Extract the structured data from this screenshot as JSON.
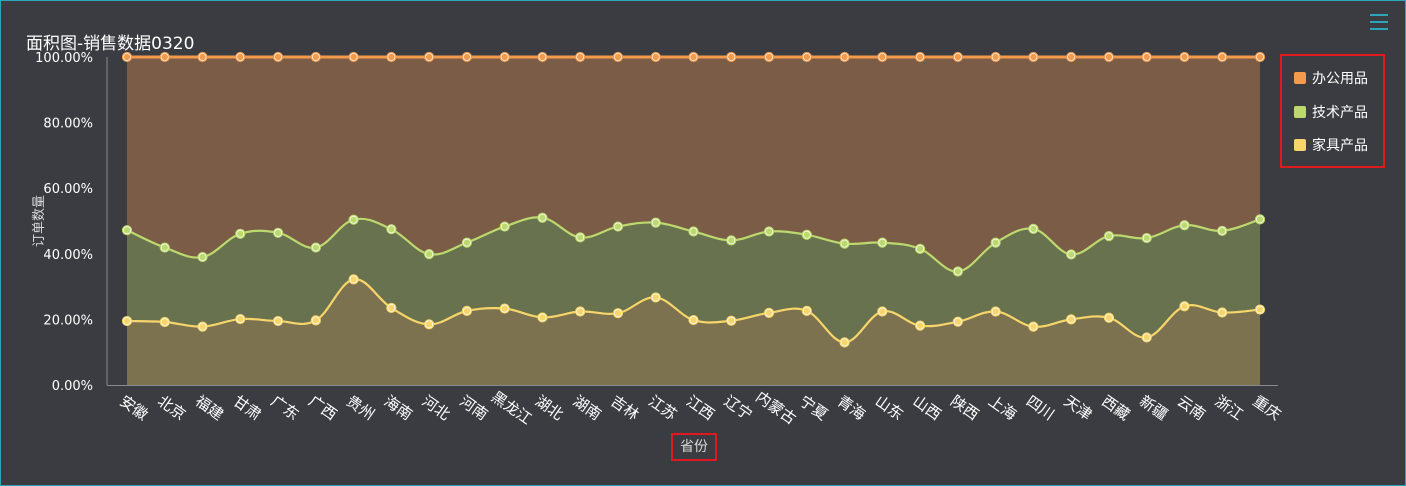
{
  "title": "面积图-销售数据0320",
  "colors": {
    "background": "#3b3c42",
    "office": "#f39a4b",
    "tech": "#bcd96e",
    "furniture": "#f7d56b",
    "office_fill": "#7b5c47",
    "tech_fill": "#69724f",
    "furniture_fill": "#7c7250",
    "highlight_border": "#e0191f",
    "accent": "#2aa6b8"
  },
  "toolbar": {
    "menu_icon": "hamburger-menu-icon"
  },
  "legend": {
    "items": [
      {
        "label": "办公用品",
        "color": "#f39a4b"
      },
      {
        "label": "技术产品",
        "color": "#bcd96e"
      },
      {
        "label": "家具产品",
        "color": "#f7d56b"
      }
    ]
  },
  "chart_data": {
    "type": "area",
    "stacked": true,
    "percent": true,
    "xlabel": "省份",
    "ylabel": "订单数量",
    "ylim": [
      0,
      100
    ],
    "yticks": [
      "0.00%",
      "20.00%",
      "40.00%",
      "60.00%",
      "80.00%",
      "100.00%"
    ],
    "grid": false,
    "legend_position": "right",
    "categories": [
      "安徽",
      "北京",
      "福建",
      "甘肃",
      "广东",
      "广西",
      "贵州",
      "海南",
      "河北",
      "河南",
      "黑龙江",
      "湖北",
      "湖南",
      "吉林",
      "江苏",
      "江西",
      "辽宁",
      "内蒙古",
      "宁夏",
      "青海",
      "山东",
      "山西",
      "陕西",
      "上海",
      "四川",
      "天津",
      "西藏",
      "新疆",
      "云南",
      "浙江",
      "重庆"
    ],
    "series": [
      {
        "name": "家具产品",
        "values": [
          19.5,
          19.2,
          17.8,
          20.1,
          19.5,
          19.7,
          32.2,
          23.5,
          18.5,
          22.6,
          23.3,
          20.6,
          22.4,
          21.9,
          26.7,
          19.8,
          19.6,
          22.0,
          22.6,
          13.0,
          22.4,
          18.1,
          19.3,
          22.4,
          17.8,
          20.0,
          20.5,
          14.5,
          24.0,
          22.1,
          23.0
        ]
      },
      {
        "name": "技术产品",
        "values": [
          47.2,
          41.9,
          39.0,
          46.1,
          46.4,
          41.9,
          50.4,
          47.5,
          39.9,
          43.4,
          48.3,
          51.0,
          45.0,
          48.3,
          49.5,
          46.8,
          44.1,
          46.8,
          45.8,
          43.1,
          43.4,
          41.5,
          34.6,
          43.4,
          47.6,
          39.8,
          45.4,
          44.8,
          48.7,
          47.0,
          50.5
        ]
      },
      {
        "name": "办公用品",
        "values": [
          100,
          100,
          100,
          100,
          100,
          100,
          100,
          100,
          100,
          100,
          100,
          100,
          100,
          100,
          100,
          100,
          100,
          100,
          100,
          100,
          100,
          100,
          100,
          100,
          100,
          100,
          100,
          100,
          100,
          100,
          100
        ]
      }
    ]
  }
}
